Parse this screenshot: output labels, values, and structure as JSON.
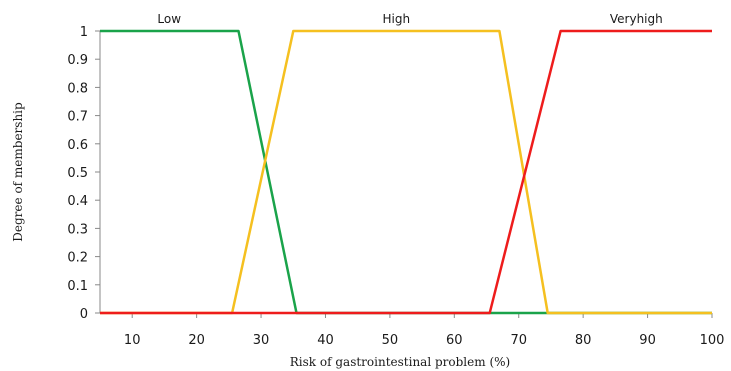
{
  "chart_data": {
    "type": "line",
    "title": "",
    "xlabel": "Risk of gastrointestinal problem (%)",
    "ylabel": "Degree of membership",
    "xlim": [
      5,
      100
    ],
    "ylim": [
      0,
      1
    ],
    "x_ticks": [
      "10",
      "20",
      "30",
      "40",
      "50",
      "60",
      "70",
      "80",
      "90",
      "100"
    ],
    "y_ticks": [
      "0",
      "0.1",
      "0.2",
      "0.3",
      "0.4",
      "0.5",
      "0.6",
      "0.7",
      "0.8",
      "0.9",
      "1"
    ],
    "x_tick_values": [
      10,
      20,
      30,
      40,
      50,
      60,
      70,
      80,
      90,
      100
    ],
    "y_tick_values": [
      0,
      0.1,
      0.2,
      0.3,
      0.4,
      0.5,
      0.6,
      0.7,
      0.8,
      0.9,
      1
    ],
    "grid": false,
    "legend": "labels above curves",
    "series": [
      {
        "name": "Low",
        "color": "#1aa34a",
        "x": [
          5,
          26.5,
          35.5,
          100
        ],
        "y": [
          1,
          1,
          0,
          0
        ]
      },
      {
        "name": "High",
        "color": "#f5c020",
        "x": [
          5,
          25.5,
          35,
          67,
          74.5,
          100
        ],
        "y": [
          0,
          0,
          1,
          1,
          0,
          0
        ]
      },
      {
        "name": "Veryhigh",
        "color": "#ee1c1c",
        "x": [
          5,
          65.5,
          76.5,
          100
        ],
        "y": [
          0,
          0,
          1,
          1
        ]
      }
    ]
  }
}
